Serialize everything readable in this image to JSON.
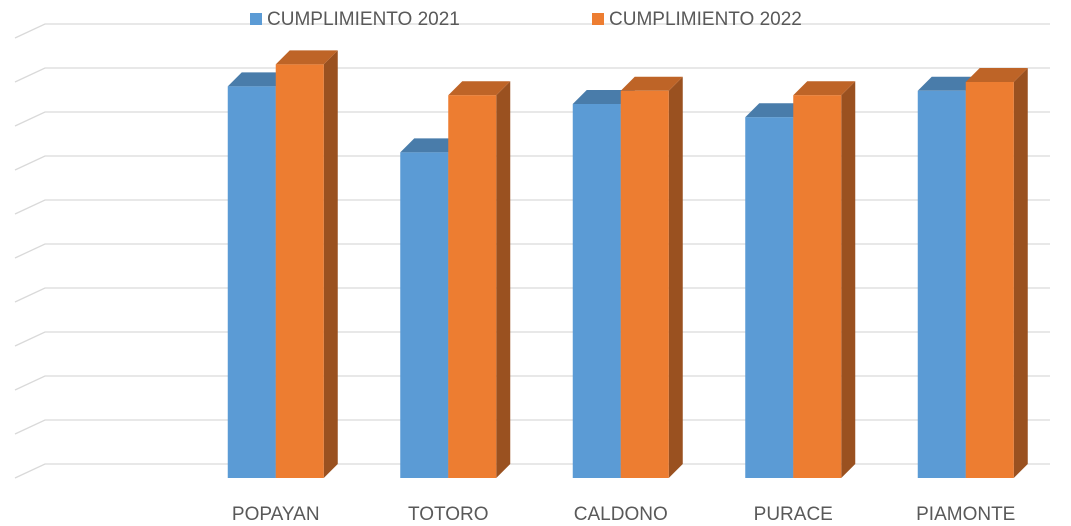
{
  "chart_data": {
    "type": "bar3d",
    "categories": [
      null,
      "POPAYAN",
      "TOTORO",
      "CALDONO",
      "PURACE",
      "PIAMONTE"
    ],
    "series": [
      {
        "name": "CUMPLIMIENTO 2021",
        "color": "#5b9bd5",
        "values": [
          null,
          89,
          74,
          85,
          82,
          88
        ]
      },
      {
        "name": "CUMPLIMIENTO 2022",
        "color": "#ed7d31",
        "values": [
          null,
          94,
          87,
          88,
          87,
          90
        ]
      }
    ],
    "ylim": [
      0,
      100
    ],
    "yticks": [
      0,
      10,
      20,
      30,
      40,
      50,
      60,
      70,
      80,
      90,
      100
    ],
    "grid": true,
    "legend": "top"
  }
}
